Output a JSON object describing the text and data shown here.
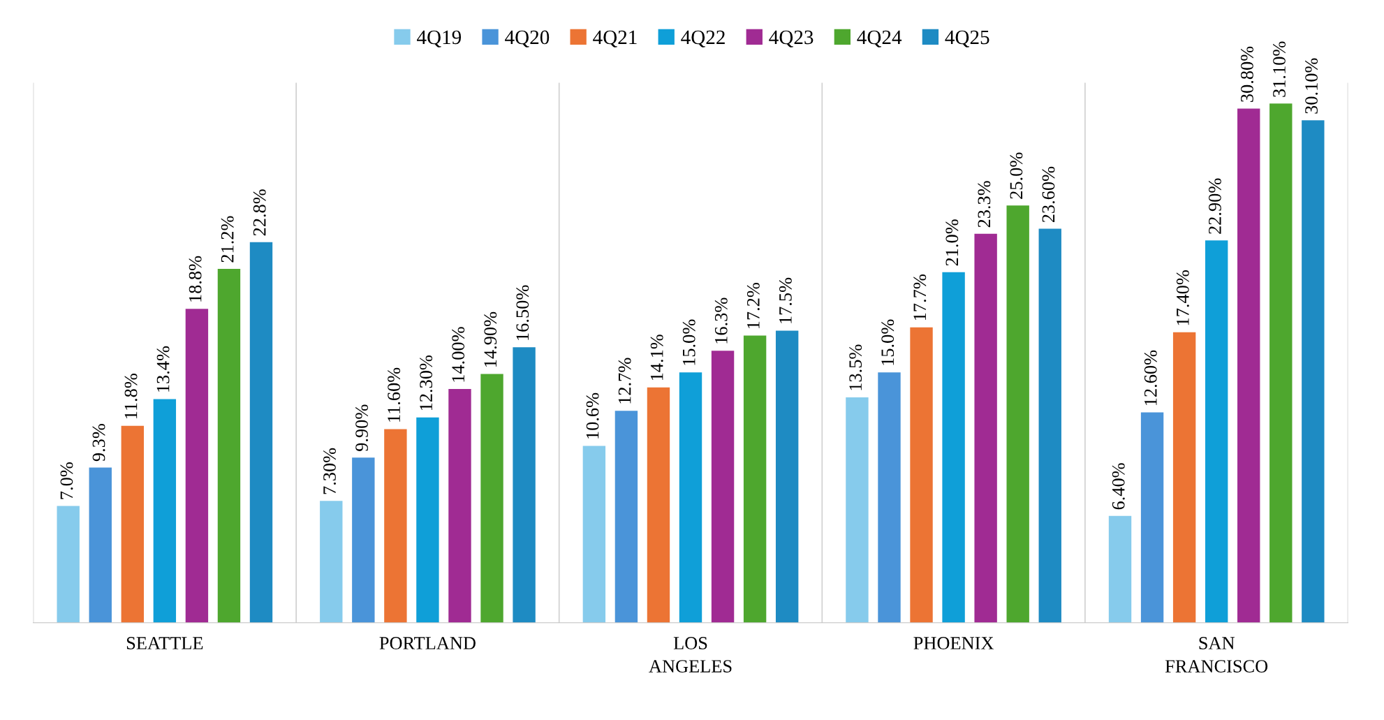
{
  "chart_data": {
    "type": "bar",
    "categories": [
      "SEATTLE",
      "PORTLAND",
      "LOS ANGELES",
      "PHOENIX",
      "SAN FRANCISCO"
    ],
    "series": [
      {
        "name": "4Q19",
        "color": "#86cbec",
        "values": [
          7.0,
          7.3,
          10.6,
          13.5,
          6.4
        ],
        "value_labels": [
          "7.0%",
          "7.30%",
          "10.6%",
          "13.5%",
          "6.40%"
        ]
      },
      {
        "name": "4Q20",
        "color": "#4a94d9",
        "values": [
          9.3,
          9.9,
          12.7,
          15.0,
          12.6
        ],
        "value_labels": [
          "9.3%",
          "9.90%",
          "12.7%",
          "15.0%",
          "12.60%"
        ]
      },
      {
        "name": "4Q21",
        "color": "#ec7434",
        "values": [
          11.8,
          11.6,
          14.1,
          17.7,
          17.4
        ],
        "value_labels": [
          "11.8%",
          "11.60%",
          "14.1%",
          "17.7%",
          "17.40%"
        ]
      },
      {
        "name": "4Q22",
        "color": "#0f9fd8",
        "values": [
          13.4,
          12.3,
          15.0,
          21.0,
          22.9
        ],
        "value_labels": [
          "13.4%",
          "12.30%",
          "15.0%",
          "21.0%",
          "22.90%"
        ]
      },
      {
        "name": "4Q23",
        "color": "#a02b93",
        "values": [
          18.8,
          14.0,
          16.3,
          23.3,
          30.8
        ],
        "value_labels": [
          "18.8%",
          "14.00%",
          "16.3%",
          "23.3%",
          "30.80%"
        ]
      },
      {
        "name": "4Q24",
        "color": "#4ea72e",
        "values": [
          21.2,
          14.9,
          17.2,
          25.0,
          31.1
        ],
        "value_labels": [
          "21.2%",
          "14.90%",
          "17.2%",
          "25.0%",
          "31.10%"
        ]
      },
      {
        "name": "4Q25",
        "color": "#1e8bc3",
        "values": [
          22.8,
          16.5,
          17.5,
          23.6,
          30.1
        ],
        "value_labels": [
          "22.8%",
          "16.50%",
          "17.5%",
          "23.60%",
          "30.10%"
        ]
      }
    ],
    "grid": "x",
    "legend": "top"
  }
}
